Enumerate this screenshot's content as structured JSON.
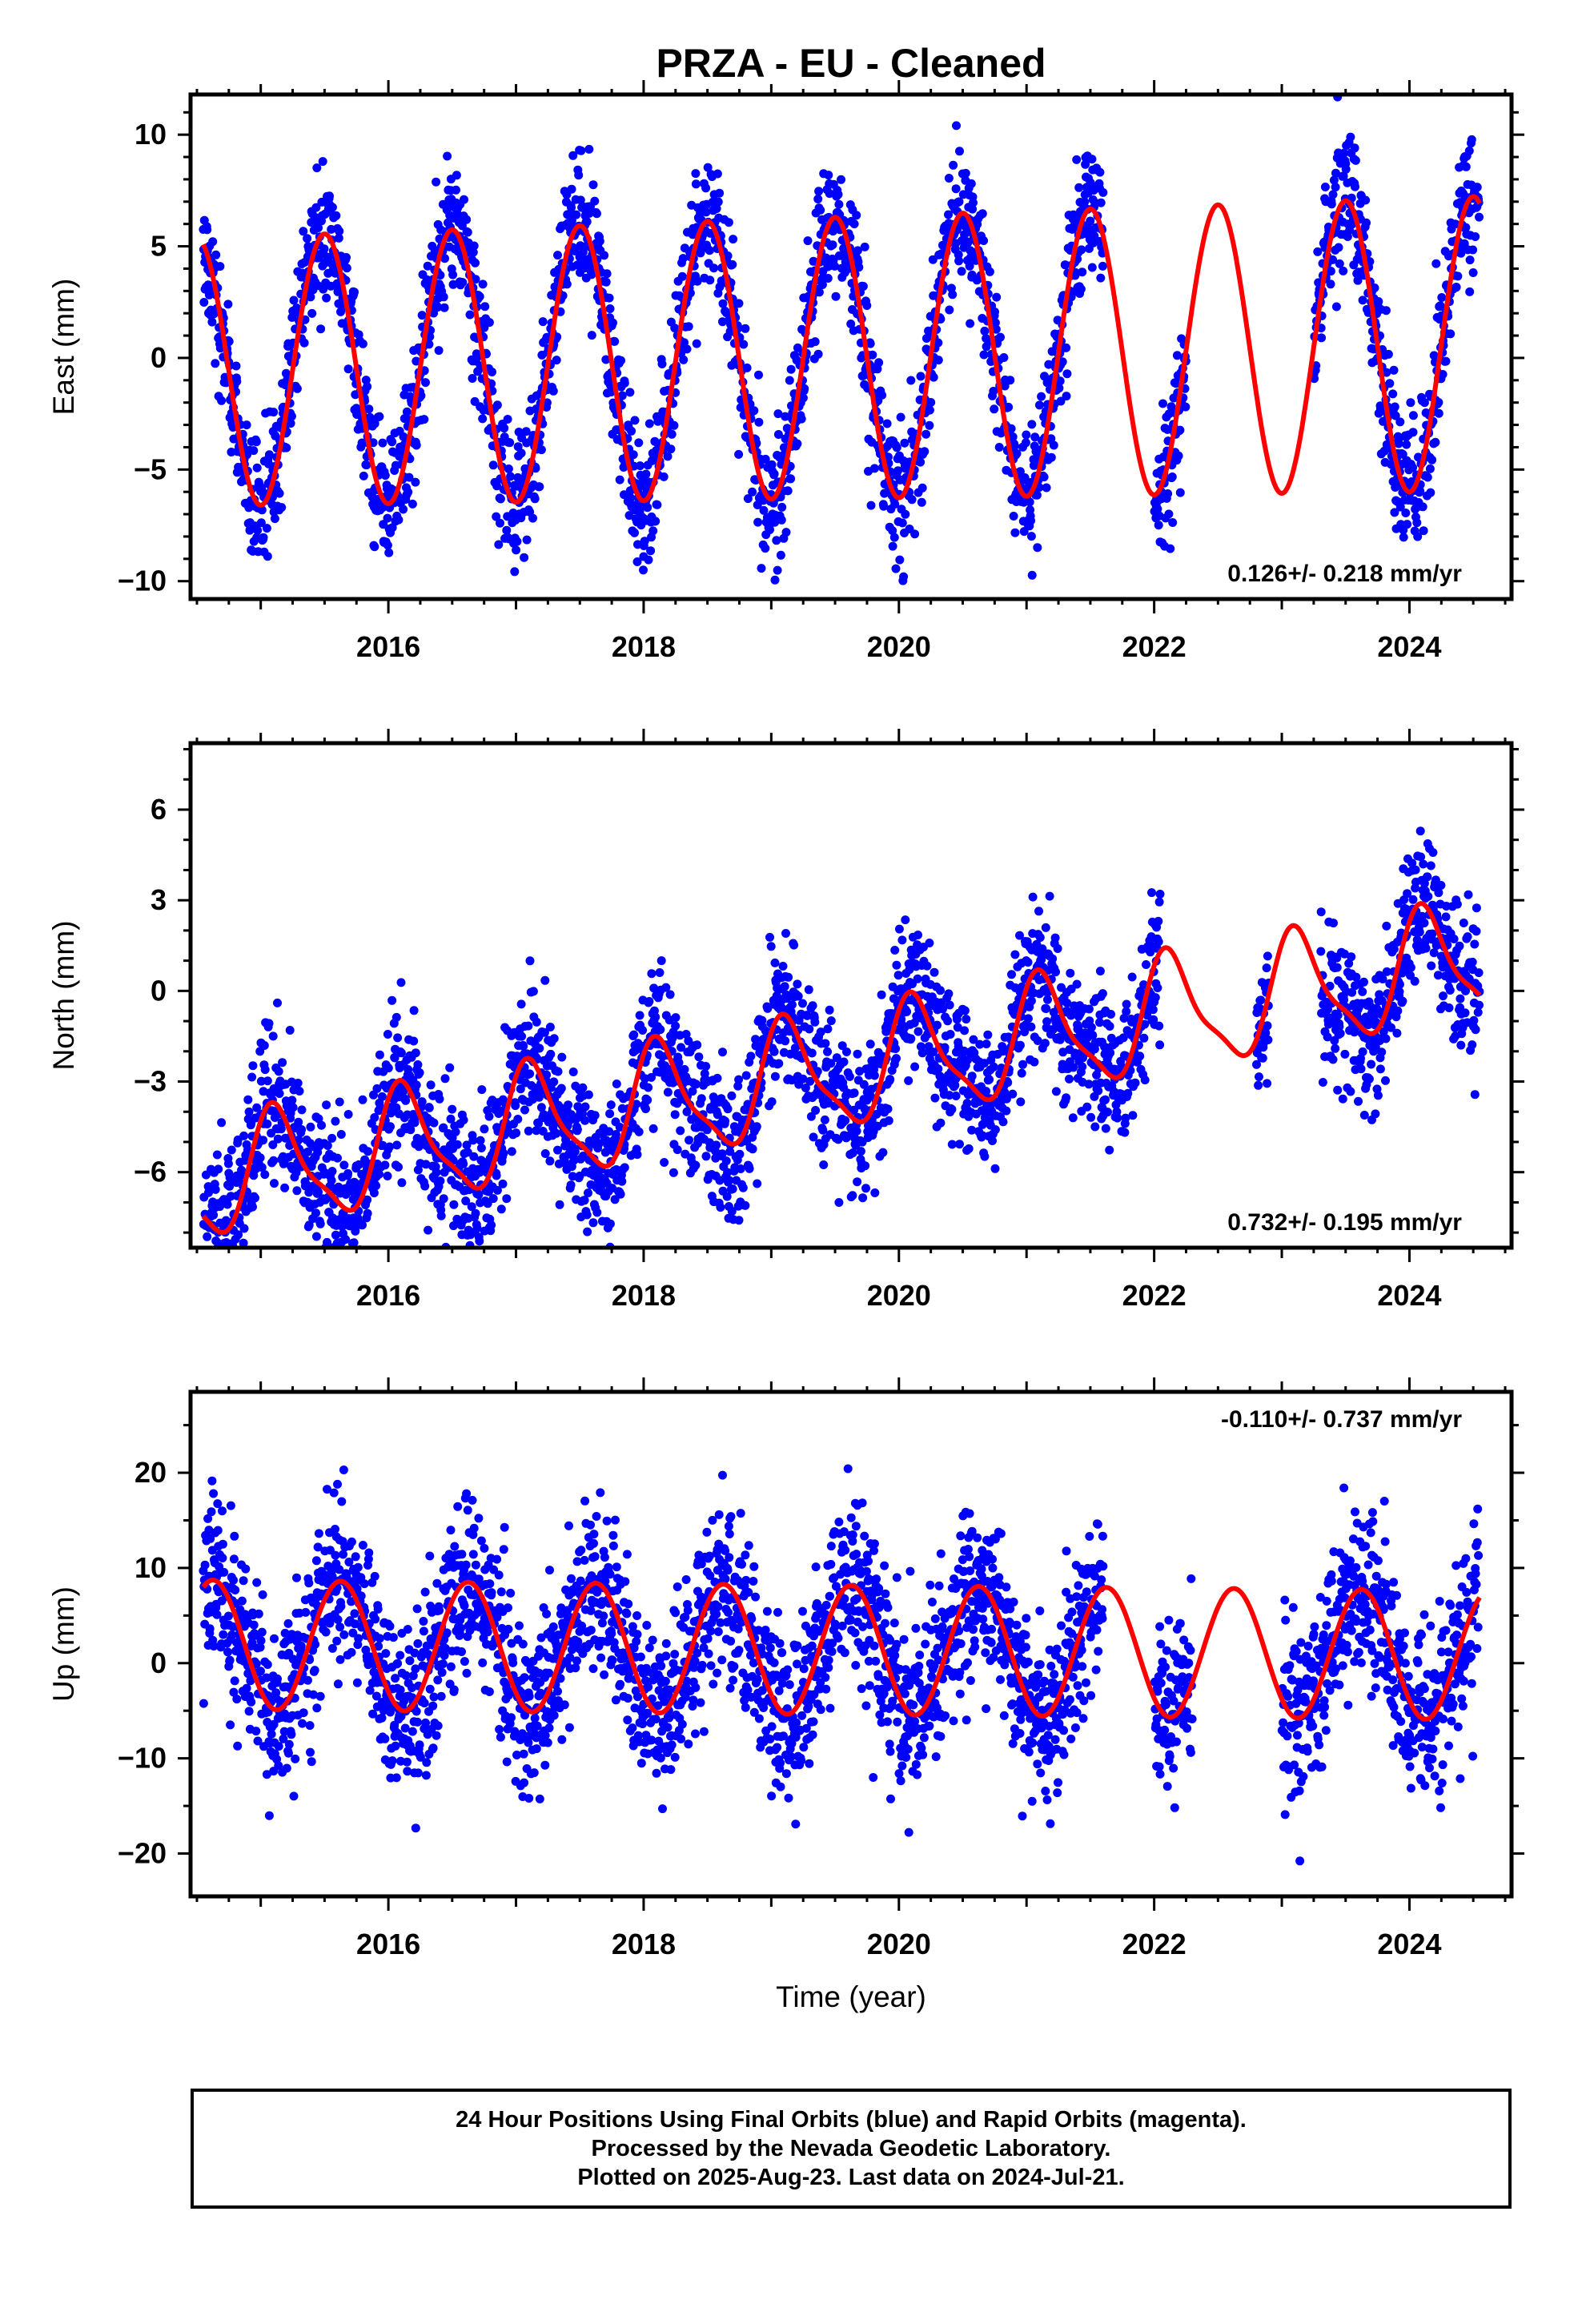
{
  "figure": {
    "title": "PRZA  - EU - Cleaned",
    "xlabel": "Time (year)",
    "footer": [
      "24 Hour Positions Using Final Orbits (blue) and Rapid Orbits (magenta).",
      "Processed by the Nevada Geodetic Laboratory.",
      "Plotted on 2025-Aug-23. Last data on 2024-Jul-21."
    ],
    "colors": {
      "points": "#0000ff",
      "model": "#ff0000",
      "axes": "#000000"
    }
  },
  "chart_data": [
    {
      "type": "scatter",
      "component": "east",
      "ylabel": "East (mm)",
      "rate_label": "0.126+/- 0.218 mm/yr",
      "rate_position": "bottom-right",
      "xlim": [
        2014.45,
        2024.8
      ],
      "ylim": [
        -10.8,
        11.8
      ],
      "xticks": [
        2016,
        2018,
        2020,
        2022,
        2024
      ],
      "yticks": [
        -10,
        -5,
        0,
        5,
        10
      ],
      "data_start": 2014.55,
      "data_end": 2024.55,
      "gaps": [
        [
          2021.6,
          2022.0
        ],
        [
          2022.25,
          2023.25
        ]
      ],
      "model": {
        "intercept": 0.0,
        "rate": 0.126,
        "annual_cos": -6.0,
        "annual_sin": 0.0,
        "semiannual_cos": 0.0,
        "semiannual_sin": 0.0,
        "amplitude_growth": 0.1
      },
      "noise_mm": 1.5,
      "grid": false
    },
    {
      "type": "scatter",
      "component": "north",
      "ylabel": "North (mm)",
      "rate_label": "0.732+/- 0.195 mm/yr",
      "rate_position": "bottom-right",
      "xlim": [
        2014.45,
        2024.8
      ],
      "ylim": [
        -8.5,
        8.2
      ],
      "xticks": [
        2016,
        2018,
        2020,
        2022,
        2024
      ],
      "yticks": [
        -6,
        -3,
        0,
        3,
        6
      ],
      "data_start": 2014.55,
      "data_end": 2024.55,
      "gaps": [
        [
          2022.05,
          2022.8
        ],
        [
          2022.9,
          2023.3
        ]
      ],
      "model": {
        "intercept": -2.7,
        "rate": 0.732,
        "annual_cos": 1.3,
        "annual_sin": 1.3,
        "semiannual_cos": 0.4,
        "semiannual_sin": 0.3,
        "amplitude_growth": 0.0
      },
      "noise_mm": 1.2,
      "grid": false
    },
    {
      "type": "scatter",
      "component": "up",
      "ylabel": "Up (mm)",
      "rate_label": "-0.110+/- 0.737 mm/yr",
      "rate_position": "top-right",
      "xlim": [
        2014.45,
        2024.8
      ],
      "ylim": [
        -24.5,
        28.5
      ],
      "xticks": [
        2016,
        2018,
        2020,
        2022,
        2024
      ],
      "yticks": [
        -20,
        -10,
        0,
        10,
        20
      ],
      "data_start": 2014.55,
      "data_end": 2024.55,
      "gaps": [
        [
          2021.6,
          2022.0
        ],
        [
          2022.3,
          2023.0
        ]
      ],
      "model": {
        "intercept": 1.4,
        "rate": -0.11,
        "annual_cos": -4.8,
        "annual_sin": -4.8,
        "semiannual_cos": 0.0,
        "semiannual_sin": 0.0,
        "amplitude_growth": 0.0
      },
      "noise_mm": 4.5,
      "grid": false
    }
  ]
}
